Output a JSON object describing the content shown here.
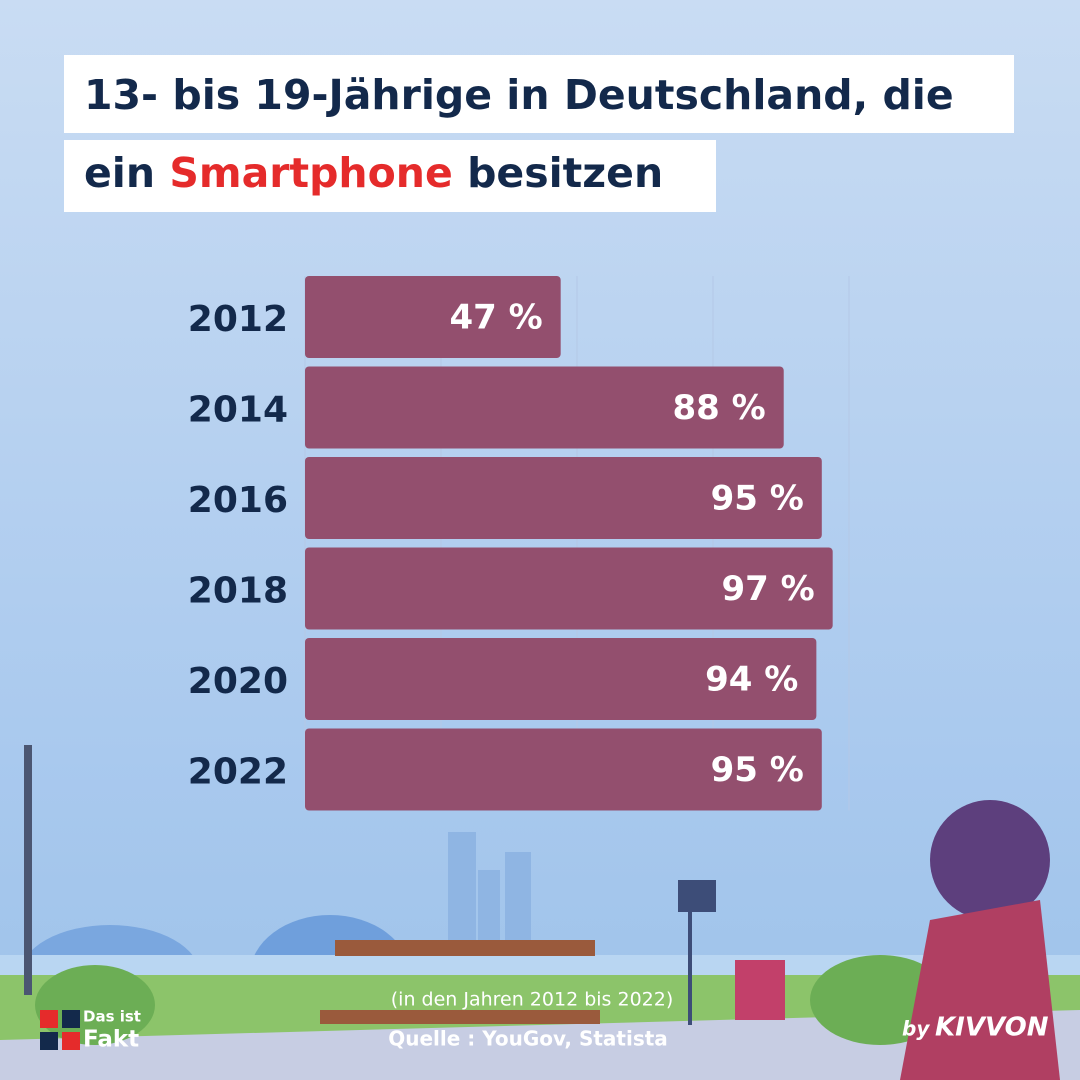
{
  "chart_data": {
    "type": "bar",
    "orientation": "horizontal",
    "title": {
      "line1": "13- bis 19-Jährige in Deutschland, die",
      "line2_start": "ein",
      "highlight": "Smartphone",
      "line2_end": "besitzen"
    },
    "categories": [
      "2012",
      "2014",
      "2016",
      "2018",
      "2020",
      "2022"
    ],
    "values": [
      47,
      88,
      95,
      97,
      94,
      95
    ],
    "value_labels": [
      "47 %",
      "88 %",
      "95 %",
      "97 %",
      "94 %",
      "95 %"
    ],
    "color": "#934f6e",
    "xlim": [
      0,
      100
    ],
    "xticks": [
      0,
      25,
      50,
      75,
      100
    ],
    "grid": true,
    "note": "(in den Jahren 2012 bis 2022)",
    "source": "Quelle : YouGov, Statista"
  },
  "branding": {
    "logo_line1": "Das ist",
    "logo_line2": "Fakt",
    "by": "by",
    "brand": "KIVVON"
  }
}
